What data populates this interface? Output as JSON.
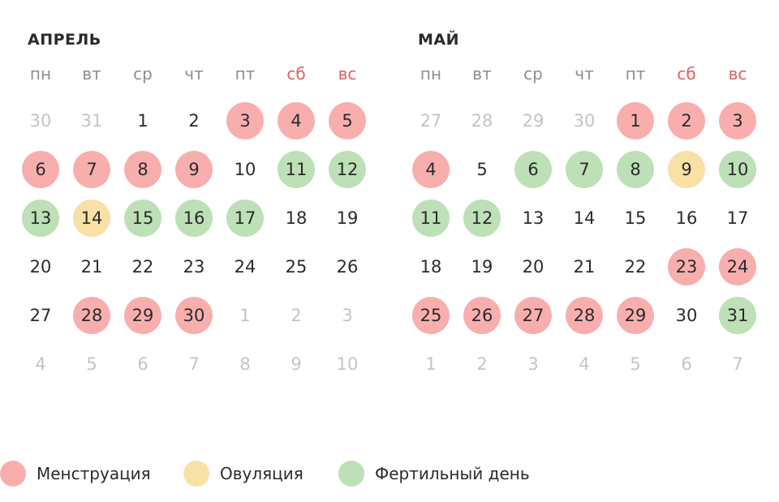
{
  "weekday_labels": [
    "пн",
    "вт",
    "ср",
    "чт",
    "пт",
    "сб",
    "вс"
  ],
  "weekend_color": "#e35d5d",
  "status_colors": {
    "mens": "#f9aeae",
    "ovul": "#f8e0a6",
    "fert": "#bde0b6"
  },
  "months": [
    {
      "title": "АПРЕЛЬ",
      "days": [
        {
          "d": "30",
          "out": true
        },
        {
          "d": "31",
          "out": true
        },
        {
          "d": "1"
        },
        {
          "d": "2"
        },
        {
          "d": "3",
          "s": "mens"
        },
        {
          "d": "4",
          "s": "mens"
        },
        {
          "d": "5",
          "s": "mens"
        },
        {
          "d": "6",
          "s": "mens"
        },
        {
          "d": "7",
          "s": "mens"
        },
        {
          "d": "8",
          "s": "mens"
        },
        {
          "d": "9",
          "s": "mens"
        },
        {
          "d": "10"
        },
        {
          "d": "11",
          "s": "fert"
        },
        {
          "d": "12",
          "s": "fert"
        },
        {
          "d": "13",
          "s": "fert"
        },
        {
          "d": "14",
          "s": "ovul"
        },
        {
          "d": "15",
          "s": "fert"
        },
        {
          "d": "16",
          "s": "fert"
        },
        {
          "d": "17",
          "s": "fert"
        },
        {
          "d": "18"
        },
        {
          "d": "19"
        },
        {
          "d": "20"
        },
        {
          "d": "21"
        },
        {
          "d": "22"
        },
        {
          "d": "23"
        },
        {
          "d": "24"
        },
        {
          "d": "25"
        },
        {
          "d": "26"
        },
        {
          "d": "27"
        },
        {
          "d": "28",
          "s": "mens"
        },
        {
          "d": "29",
          "s": "mens"
        },
        {
          "d": "30",
          "s": "mens"
        },
        {
          "d": "1",
          "out": true
        },
        {
          "d": "2",
          "out": true
        },
        {
          "d": "3",
          "out": true
        },
        {
          "d": "4",
          "out": true
        },
        {
          "d": "5",
          "out": true
        },
        {
          "d": "6",
          "out": true
        },
        {
          "d": "7",
          "out": true
        },
        {
          "d": "8",
          "out": true
        },
        {
          "d": "9",
          "out": true
        },
        {
          "d": "10",
          "out": true
        }
      ]
    },
    {
      "title": "МАЙ",
      "days": [
        {
          "d": "27",
          "out": true
        },
        {
          "d": "28",
          "out": true
        },
        {
          "d": "29",
          "out": true
        },
        {
          "d": "30",
          "out": true
        },
        {
          "d": "1",
          "s": "mens"
        },
        {
          "d": "2",
          "s": "mens"
        },
        {
          "d": "3",
          "s": "mens"
        },
        {
          "d": "4",
          "s": "mens"
        },
        {
          "d": "5"
        },
        {
          "d": "6",
          "s": "fert"
        },
        {
          "d": "7",
          "s": "fert"
        },
        {
          "d": "8",
          "s": "fert"
        },
        {
          "d": "9",
          "s": "ovul"
        },
        {
          "d": "10",
          "s": "fert"
        },
        {
          "d": "11",
          "s": "fert"
        },
        {
          "d": "12",
          "s": "fert"
        },
        {
          "d": "13"
        },
        {
          "d": "14"
        },
        {
          "d": "15"
        },
        {
          "d": "16"
        },
        {
          "d": "17"
        },
        {
          "d": "18"
        },
        {
          "d": "19"
        },
        {
          "d": "20"
        },
        {
          "d": "21"
        },
        {
          "d": "22"
        },
        {
          "d": "23",
          "s": "mens"
        },
        {
          "d": "24",
          "s": "mens"
        },
        {
          "d": "25",
          "s": "mens"
        },
        {
          "d": "26",
          "s": "mens"
        },
        {
          "d": "27",
          "s": "mens"
        },
        {
          "d": "28",
          "s": "mens"
        },
        {
          "d": "29",
          "s": "mens"
        },
        {
          "d": "30"
        },
        {
          "d": "31",
          "s": "fert"
        },
        {
          "d": "1",
          "out": true
        },
        {
          "d": "2",
          "out": true
        },
        {
          "d": "3",
          "out": true
        },
        {
          "d": "4",
          "out": true
        },
        {
          "d": "5",
          "out": true
        },
        {
          "d": "6",
          "out": true
        },
        {
          "d": "7",
          "out": true
        }
      ]
    }
  ],
  "legend": [
    {
      "key": "mens",
      "label": "Менструация"
    },
    {
      "key": "ovul",
      "label": "Овуляция"
    },
    {
      "key": "fert",
      "label": "Фертильный день"
    }
  ]
}
